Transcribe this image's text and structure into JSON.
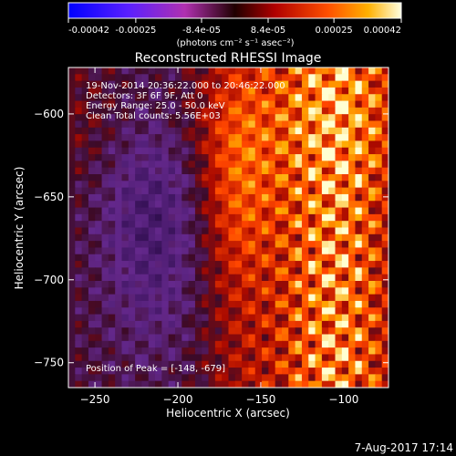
{
  "colorbar": {
    "ticks": [
      {
        "value": -0.00042,
        "label": "-0.00042"
      },
      {
        "value": -0.00025,
        "label": "-0.00025"
      },
      {
        "value": -8.4e-05,
        "label": "-8.4e-05"
      },
      {
        "value": 8.4e-05,
        "label": "8.4e-05"
      },
      {
        "value": 0.00025,
        "label": "0.00025"
      },
      {
        "value": 0.00042,
        "label": "0.00042"
      }
    ],
    "range": [
      -0.00042,
      0.00042
    ],
    "unit_label": "(photons cm⁻² s⁻¹ asec⁻²)"
  },
  "chart_data": {
    "type": "heatmap",
    "title": "Reconstructed RHESSI Image",
    "xlabel": "Heliocentric X (arcsec)",
    "ylabel": "Heliocentric Y (arcsec)",
    "xlim": [
      -266,
      -73
    ],
    "ylim": [
      -765,
      -572
    ],
    "xticks": [
      -250,
      -200,
      -150,
      -100
    ],
    "xtick_labels": [
      "−250",
      "−200",
      "−150",
      "−100"
    ],
    "yticks": [
      -750,
      -700,
      -650,
      -600
    ],
    "ytick_labels": [
      "−750",
      "−700",
      "−650",
      "−600"
    ],
    "annotations": [
      "19-Nov-2014 20:36:22.000 to 20:46:22.000",
      "Detectors: 3F 6F 9F, Att 0",
      "Energy Range: 25.0 - 50.0 keV",
      "Clean    Total counts: 5.56E+03",
      "Position of Peak = [-148, -679]"
    ],
    "peak_position": [
      -148,
      -679
    ],
    "footer": "7-Aug-2017 17:14"
  }
}
